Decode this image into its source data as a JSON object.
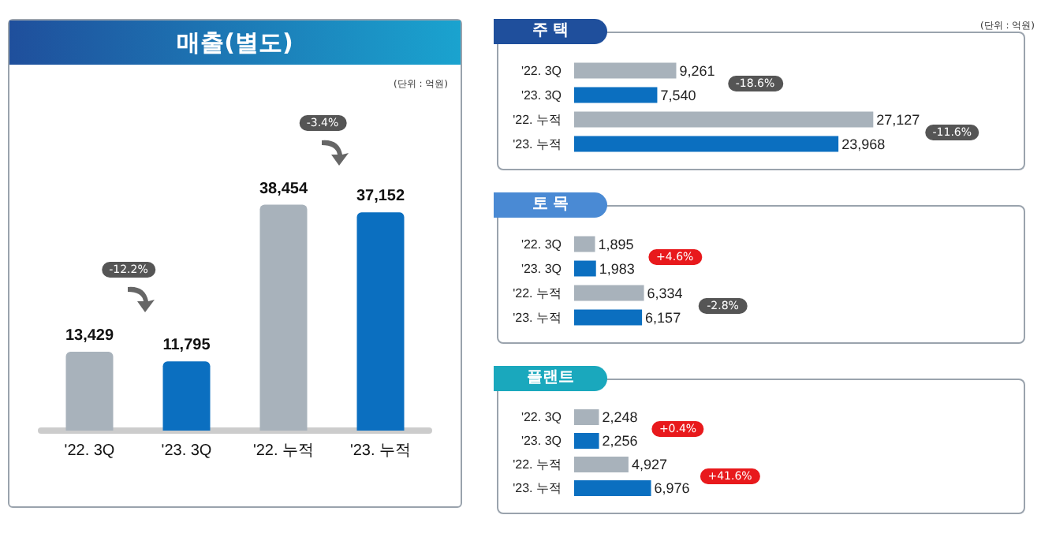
{
  "chart_data": [
    {
      "type": "bar",
      "title": "매출(별도)",
      "categories": [
        "'22. 3Q",
        "'23. 3Q",
        "'22. 누적",
        "'23. 누적"
      ],
      "values": [
        13429,
        11795,
        38454,
        37152
      ],
      "colors": [
        "#a8b2bb",
        "#0b6fc0",
        "#a8b2bb",
        "#0b6fc0"
      ],
      "value_labels": [
        "13,429",
        "11,795",
        "38,454",
        "37,152"
      ],
      "annotations": [
        "(단위 : 억원)",
        "-12.2%",
        "-3.4%"
      ]
    },
    {
      "type": "bar",
      "orientation": "horizontal",
      "title": "주 택",
      "categories": [
        "'22. 3Q",
        "'23. 3Q",
        "'22. 누적",
        "'23. 누적"
      ],
      "values": [
        9261,
        7540,
        27127,
        23968
      ],
      "colors": [
        "#a8b2bb",
        "#0b6fc0",
        "#a8b2bb",
        "#0b6fc0"
      ],
      "value_labels": [
        "9,261",
        "7,540",
        "27,127",
        "23,968"
      ],
      "annotations": [
        "(단위 : 억원)",
        "-18.6%",
        "-11.6%"
      ]
    },
    {
      "type": "bar",
      "orientation": "horizontal",
      "title": "토 목",
      "categories": [
        "'22. 3Q",
        "'23. 3Q",
        "'22. 누적",
        "'23. 누적"
      ],
      "values": [
        1895,
        1983,
        6334,
        6157
      ],
      "colors": [
        "#a8b2bb",
        "#0b6fc0",
        "#a8b2bb",
        "#0b6fc0"
      ],
      "value_labels": [
        "1,895",
        "1,983",
        "6,334",
        "6,157"
      ],
      "annotations": [
        "+4.6%",
        "-2.8%"
      ]
    },
    {
      "type": "bar",
      "orientation": "horizontal",
      "title": "플랜트",
      "categories": [
        "'22. 3Q",
        "'23. 3Q",
        "'22. 누적",
        "'23. 누적"
      ],
      "values": [
        2248,
        2256,
        4927,
        6976
      ],
      "colors": [
        "#a8b2bb",
        "#0b6fc0",
        "#a8b2bb",
        "#0b6fc0"
      ],
      "value_labels": [
        "2,248",
        "2,256",
        "4,927",
        "6,976"
      ],
      "annotations": [
        "+0.4%",
        "+41.6%"
      ]
    }
  ]
}
